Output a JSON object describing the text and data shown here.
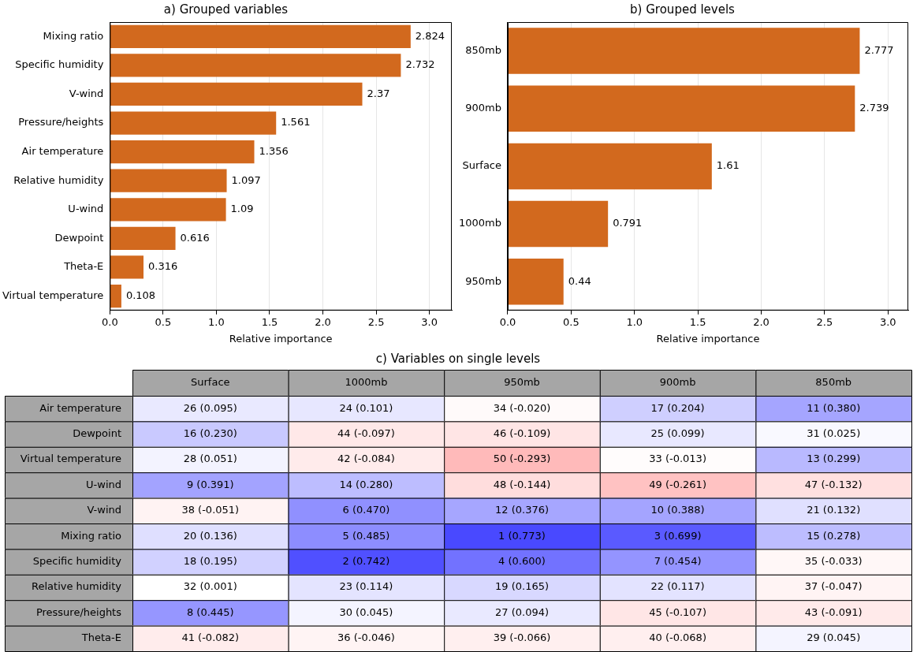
{
  "chart_data": [
    {
      "type": "bar",
      "title": "a) Grouped variables",
      "xlabel": "Relative importance",
      "orientation": "horizontal",
      "color": "#d2691e",
      "grid": "x",
      "data_labels": true,
      "categories": [
        "Mixing ratio",
        "Specific humidity",
        "V-wind",
        "Pressure/heights",
        "Air temperature",
        "Relative humidity",
        "U-wind",
        "Dewpoint",
        "Theta-E",
        "Virtual temperature"
      ],
      "values": [
        2.824,
        2.732,
        2.37,
        1.561,
        1.356,
        1.097,
        1.09,
        0.616,
        0.316,
        0.108
      ],
      "xlim": [
        0,
        3.21
      ],
      "xticks": [
        {
          "value": 0,
          "label": "0.0"
        },
        0.5,
        {
          "value": 1,
          "label": "1.0"
        },
        1.5,
        {
          "value": 2,
          "label": "2.0"
        },
        2.5,
        {
          "value": 3,
          "label": "3.0"
        }
      ]
    },
    {
      "type": "bar",
      "title": "b) Grouped levels",
      "xlabel": "Relative importance",
      "orientation": "horizontal",
      "color": "#d2691e",
      "grid": "x",
      "data_labels": true,
      "categories": [
        "850mb",
        "900mb",
        "Surface",
        "1000mb",
        "950mb"
      ],
      "values": [
        2.777,
        2.739,
        1.61,
        0.791,
        0.44
      ],
      "xlim": [
        0,
        3.16
      ],
      "xticks": [
        {
          "value": 0,
          "label": "0.0"
        },
        0.5,
        {
          "value": 1,
          "label": "1.0"
        },
        1.5,
        {
          "value": 2,
          "label": "2.0"
        },
        2.5,
        {
          "value": 3,
          "label": "3.0"
        }
      ]
    },
    {
      "type": "heatmap",
      "title": "c) Variables on single levels",
      "categories": [
        "Surface",
        "1000mb",
        "950mb",
        "900mb",
        "850mb"
      ],
      "y_categories": [
        "Air temperature",
        "Dewpoint",
        "Virtual temperature",
        "U-wind",
        "V-wind",
        "Mixing ratio",
        "Specific humidity",
        "Relative humidity",
        "Pressure/heights",
        "Theta-E"
      ],
      "cells": [
        [
          0.095,
          0.101,
          -0.02,
          0.204,
          0.38
        ],
        [
          0.23,
          -0.097,
          -0.109,
          0.099,
          0.025
        ],
        [
          0.051,
          -0.084,
          -0.293,
          -0.013,
          0.299
        ],
        [
          0.391,
          0.28,
          -0.144,
          -0.261,
          -0.132
        ],
        [
          -0.051,
          0.47,
          0.376,
          0.388,
          0.132
        ],
        [
          0.136,
          0.485,
          0.773,
          0.699,
          0.278
        ],
        [
          0.195,
          0.742,
          0.6,
          0.454,
          -0.033
        ],
        [
          0.001,
          0.114,
          0.165,
          0.117,
          -0.047
        ],
        [
          0.445,
          0.045,
          0.094,
          -0.107,
          -0.091
        ],
        [
          -0.082,
          -0.046,
          -0.066,
          -0.068,
          0.045
        ]
      ],
      "cell_labels": [
        [
          "(0.095)",
          "(0.101)",
          "(-0.020)",
          "(0.204)",
          "(0.380)"
        ],
        [
          "(0.230)",
          "(-0.097)",
          "(-0.109)",
          "(0.099)",
          "(0.025)"
        ],
        [
          "(0.051)",
          "(-0.084)",
          "(-0.293)",
          "(-0.013)",
          "(0.299)"
        ],
        [
          "(0.391)",
          "(0.280)",
          "(-0.144)",
          "(-0.261)",
          "(-0.132)"
        ],
        [
          "(-0.051)",
          "(0.470)",
          "(0.376)",
          "(0.388)",
          "(0.132)"
        ],
        [
          "(0.136)",
          "(0.485)",
          "(0.773)",
          "(0.699)",
          "(0.278)"
        ],
        [
          "(0.195)",
          "(0.742)",
          "(0.600)",
          "(0.454)",
          "(-0.033)"
        ],
        [
          "(0.001)",
          "(0.114)",
          "(0.165)",
          "(0.117)",
          "(-0.047)"
        ],
        [
          "(0.445)",
          "(0.045)",
          "(0.094)",
          "(-0.107)",
          "(-0.091)"
        ],
        [
          "(-0.082)",
          "(-0.046)",
          "(-0.066)",
          "(-0.068)",
          "(0.045)"
        ]
      ],
      "annotations": [
        "26",
        "24",
        "34",
        "17",
        "11",
        "16",
        "44",
        "46",
        "25",
        "31",
        "28",
        "42",
        "50",
        "33",
        "13",
        "9",
        "14",
        "48",
        "49",
        "47",
        "38",
        "6",
        "12",
        "10",
        "21",
        "20",
        "5",
        "1",
        "3",
        "15",
        "18",
        "2",
        "4",
        "7",
        "35",
        "32",
        "23",
        "19",
        "22",
        "37",
        "8",
        "30",
        "27",
        "45",
        "43",
        "41",
        "36",
        "39",
        "40",
        "29"
      ]
    }
  ]
}
